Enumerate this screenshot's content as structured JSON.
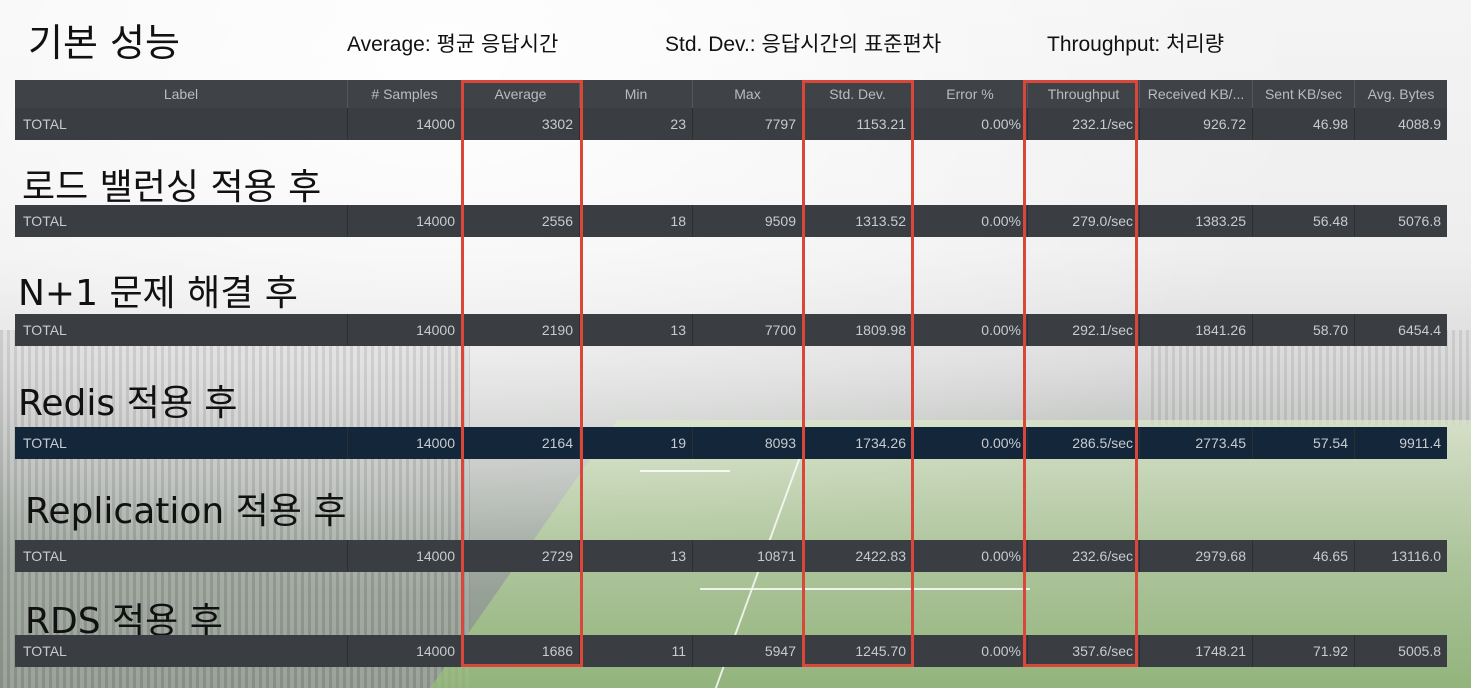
{
  "titles": {
    "basic": "기본 성능",
    "lb": "로드 밸런싱 적용 후",
    "n1": "N+1 문제 해결 후",
    "redis": "Redis 적용 후",
    "replication": "Replication 적용 후",
    "rds": "RDS 적용 후"
  },
  "legend": {
    "average": "Average: 평균 응답시간",
    "stddev": "Std. Dev.: 응답시간의 표준편차",
    "throughput": "Throughput: 처리량"
  },
  "columns": [
    "Label",
    "# Samples",
    "Average",
    "Min",
    "Max",
    "Std. Dev.",
    "Error %",
    "Throughput",
    "Received KB/...",
    "Sent KB/sec",
    "Avg. Bytes"
  ],
  "rows": [
    [
      "TOTAL",
      "14000",
      "3302",
      "23",
      "7797",
      "1153.21",
      "0.00%",
      "232.1/sec",
      "926.72",
      "46.98",
      "4088.9"
    ],
    [
      "TOTAL",
      "14000",
      "2556",
      "18",
      "9509",
      "1313.52",
      "0.00%",
      "279.0/sec",
      "1383.25",
      "56.48",
      "5076.8"
    ],
    [
      "TOTAL",
      "14000",
      "2190",
      "13",
      "7700",
      "1809.98",
      "0.00%",
      "292.1/sec",
      "1841.26",
      "58.70",
      "6454.4"
    ],
    [
      "TOTAL",
      "14000",
      "2164",
      "19",
      "8093",
      "1734.26",
      "0.00%",
      "286.5/sec",
      "2773.45",
      "57.54",
      "9911.4"
    ],
    [
      "TOTAL",
      "14000",
      "2729",
      "13",
      "10871",
      "2422.83",
      "0.00%",
      "232.6/sec",
      "2979.68",
      "46.65",
      "13116.0"
    ],
    [
      "TOTAL",
      "14000",
      "1686",
      "11",
      "5947",
      "1245.70",
      "0.00%",
      "357.6/sec",
      "1748.21",
      "71.92",
      "5005.8"
    ]
  ],
  "colors": {
    "highlight_box": "#d9463a",
    "row_bg": "#3a3d42",
    "selected_row_bg": "#14263a"
  }
}
